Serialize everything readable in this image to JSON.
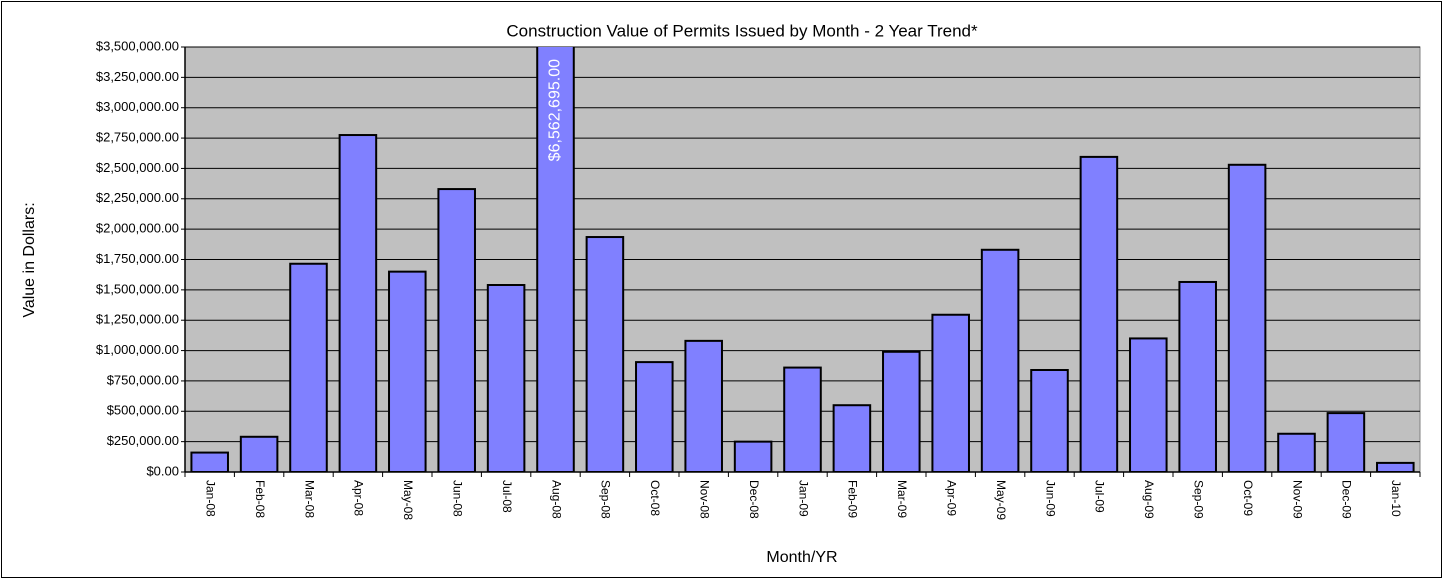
{
  "chart_data": {
    "type": "bar",
    "title": "Construction Value of Permits Issued by Month - 2 Year Trend*",
    "y_label": "Value in Dollars:",
    "x_label": "Month/YR",
    "categories": [
      "Jan-08",
      "Feb-08",
      "Mar-08",
      "Apr-08",
      "May-08",
      "Jun-08",
      "Jul-08",
      "Aug-08",
      "Sep-08",
      "Oct-08",
      "Nov-08",
      "Dec-08",
      "Jan-09",
      "Feb-09",
      "Mar-09",
      "Apr-09",
      "May-09",
      "Jun-09",
      "Jul-09",
      "Aug-09",
      "Sep-09",
      "Oct-09",
      "Nov-09",
      "Dec-09",
      "Jan-10"
    ],
    "values": [
      160000,
      290000,
      1715000,
      2775000,
      1650000,
      2330000,
      1540000,
      6562695,
      1935000,
      905000,
      1080000,
      250000,
      860000,
      550000,
      990000,
      1295000,
      1830000,
      840000,
      2595000,
      1100000,
      1565000,
      2530000,
      315000,
      485000,
      75000
    ],
    "value_labels": [
      null,
      null,
      null,
      null,
      null,
      null,
      null,
      "$6,562,695.00",
      null,
      null,
      null,
      null,
      null,
      null,
      null,
      null,
      null,
      null,
      null,
      null,
      null,
      null,
      null,
      null,
      null
    ],
    "color": "#8080ff",
    "plot_background": "#c0c0c0",
    "ylim": [
      0,
      3500000
    ],
    "yticks": [
      {
        "value": 0,
        "label": "$0.00"
      },
      {
        "value": 250000,
        "label": "$250,000.00"
      },
      {
        "value": 500000,
        "label": "$500,000.00"
      },
      {
        "value": 750000,
        "label": "$750,000.00"
      },
      {
        "value": 1000000,
        "label": "$1,000,000.00"
      },
      {
        "value": 1250000,
        "label": "$1,250,000.00"
      },
      {
        "value": 1500000,
        "label": "$1,500,000.00"
      },
      {
        "value": 1750000,
        "label": "$1,750,000.00"
      },
      {
        "value": 2000000,
        "label": "$2,000,000.00"
      },
      {
        "value": 2250000,
        "label": "$2,250,000.00"
      },
      {
        "value": 2500000,
        "label": "$2,500,000.00"
      },
      {
        "value": 2750000,
        "label": "$2,750,000.00"
      },
      {
        "value": 3000000,
        "label": "$3,000,000.00"
      },
      {
        "value": 3250000,
        "label": "$3,250,000.00"
      },
      {
        "value": 3500000,
        "label": "$3,500,000.00"
      }
    ],
    "grid": true
  }
}
